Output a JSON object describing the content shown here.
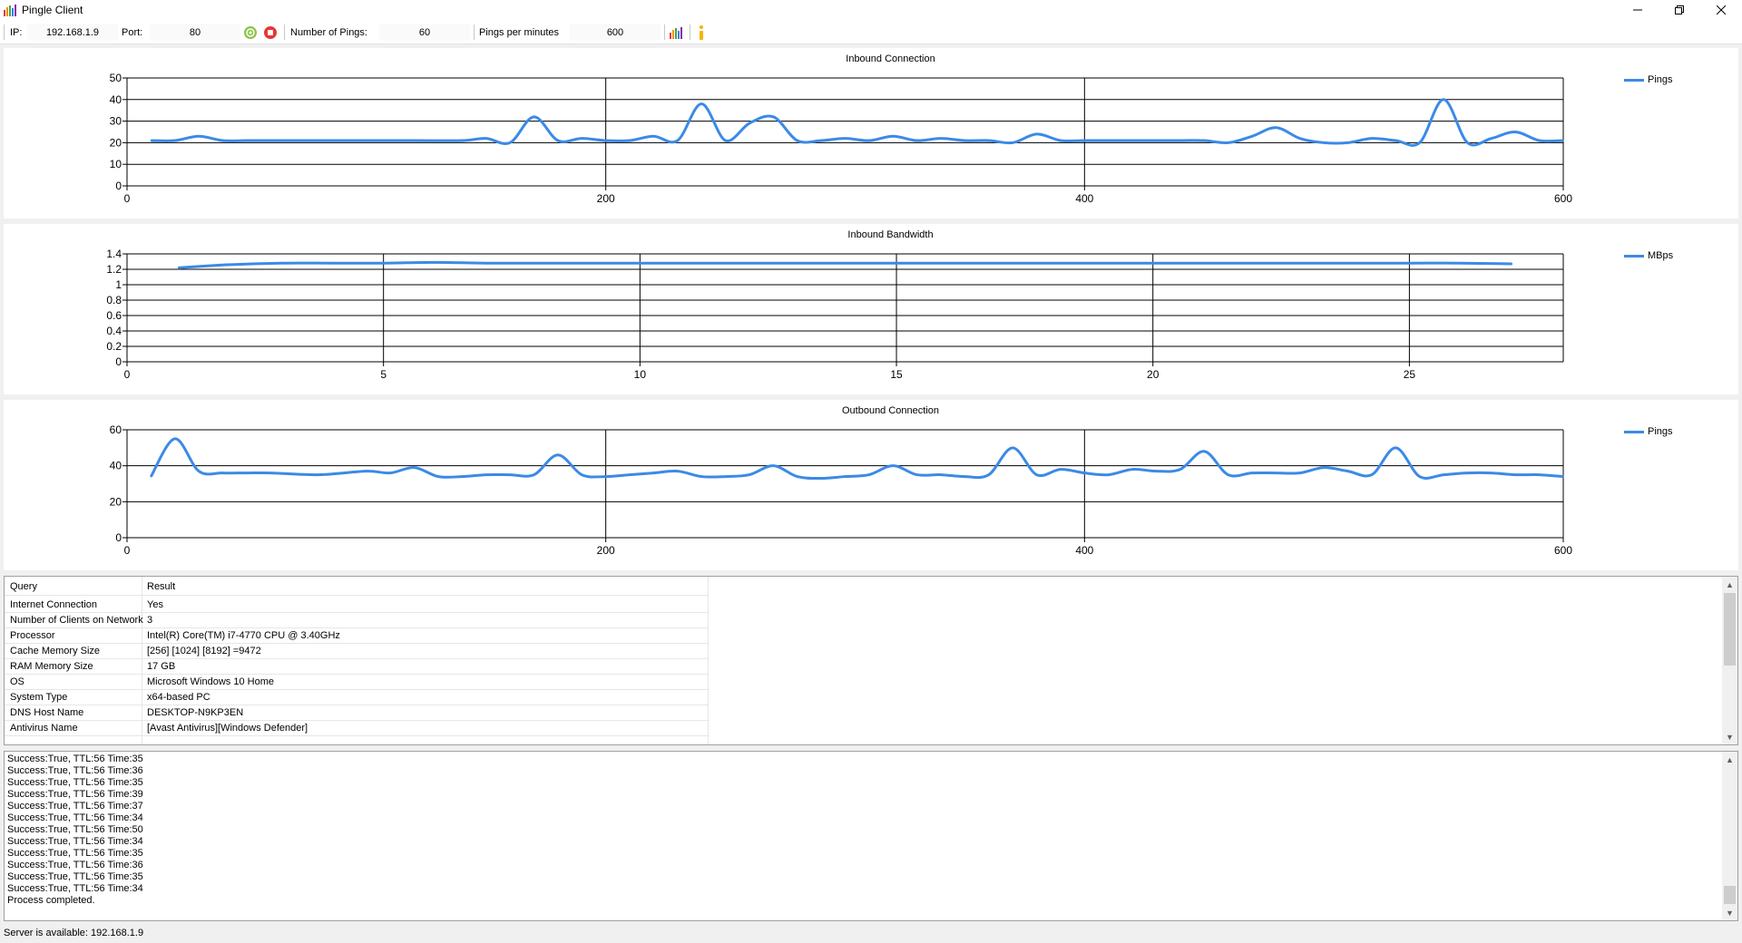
{
  "window": {
    "title": "Pingle Client"
  },
  "toolbar": {
    "ip_label": "IP:",
    "ip_value": "192.168.1.9",
    "port_label": "Port:",
    "port_value": "80",
    "pings_label": "Number of Pings:",
    "pings_value": "60",
    "ppm_label": "Pings per minutes",
    "ppm_value": "600",
    "icons": [
      "start-icon",
      "stop-icon",
      "chart-icon",
      "info-icon"
    ]
  },
  "colors": {
    "series": "#3b8ae6",
    "start": "#8bc34a",
    "stop": "#e53935"
  },
  "chart_data": [
    {
      "type": "line",
      "title": "Inbound Connection",
      "xlabel": "",
      "ylabel": "",
      "xlim": [
        0,
        600
      ],
      "ylim": [
        0,
        50
      ],
      "xticks": [
        0,
        200,
        400,
        600
      ],
      "yticks": [
        0,
        10,
        20,
        30,
        40,
        50
      ],
      "grid": true,
      "legend": "top-right",
      "series": [
        {
          "name": "Pings",
          "color": "#3b8ae6",
          "x": [
            10,
            20,
            30,
            40,
            50,
            60,
            80,
            100,
            120,
            140,
            150,
            160,
            170,
            180,
            190,
            200,
            210,
            220,
            230,
            240,
            250,
            260,
            270,
            280,
            290,
            300,
            310,
            320,
            330,
            340,
            350,
            360,
            370,
            380,
            390,
            400,
            410,
            420,
            430,
            440,
            450,
            460,
            470,
            480,
            490,
            500,
            510,
            520,
            530,
            540,
            550,
            560,
            570,
            580,
            590,
            600
          ],
          "y": [
            21,
            21,
            23,
            21,
            21,
            21,
            21,
            21,
            21,
            21,
            22,
            20,
            32,
            21,
            22,
            21,
            21,
            23,
            21,
            38,
            21,
            29,
            32,
            21,
            21,
            22,
            21,
            23,
            21,
            22,
            21,
            21,
            20,
            24,
            21,
            21,
            21,
            21,
            21,
            21,
            21,
            20,
            23,
            27,
            22,
            20,
            20,
            22,
            21,
            20,
            40,
            20,
            22,
            25,
            21,
            21
          ]
        }
      ]
    },
    {
      "type": "line",
      "title": "Inbound Bandwidth",
      "xlabel": "",
      "ylabel": "",
      "xlim": [
        0,
        28
      ],
      "ylim": [
        0,
        1.4
      ],
      "xticks": [
        0,
        5,
        10,
        15,
        20,
        25
      ],
      "yticks": [
        0,
        0.2,
        0.4,
        0.6,
        0.8,
        1,
        1.2,
        1.4
      ],
      "grid": true,
      "legend": "top-right",
      "series": [
        {
          "name": "MBps",
          "color": "#3b8ae6",
          "x": [
            1,
            2,
            3,
            4,
            5,
            6,
            7,
            8,
            9,
            10,
            11,
            12,
            13,
            14,
            15,
            16,
            17,
            18,
            19,
            20,
            21,
            22,
            23,
            24,
            25,
            26,
            27
          ],
          "y": [
            1.22,
            1.26,
            1.28,
            1.28,
            1.28,
            1.29,
            1.28,
            1.28,
            1.28,
            1.28,
            1.28,
            1.28,
            1.28,
            1.28,
            1.28,
            1.28,
            1.28,
            1.28,
            1.28,
            1.28,
            1.28,
            1.28,
            1.28,
            1.28,
            1.28,
            1.28,
            1.27
          ]
        }
      ]
    },
    {
      "type": "line",
      "title": "Outbound Connection",
      "xlabel": "",
      "ylabel": "",
      "xlim": [
        0,
        600
      ],
      "ylim": [
        0,
        60
      ],
      "xticks": [
        0,
        200,
        400,
        600
      ],
      "yticks": [
        0,
        20,
        40,
        60
      ],
      "grid": true,
      "legend": "top-right",
      "series": [
        {
          "name": "Pings",
          "color": "#3b8ae6",
          "x": [
            10,
            20,
            30,
            40,
            50,
            60,
            80,
            100,
            110,
            120,
            130,
            140,
            150,
            160,
            170,
            180,
            190,
            200,
            210,
            220,
            230,
            240,
            250,
            260,
            270,
            280,
            290,
            300,
            310,
            320,
            330,
            340,
            350,
            360,
            370,
            380,
            390,
            400,
            410,
            420,
            430,
            440,
            450,
            460,
            470,
            480,
            490,
            500,
            510,
            520,
            530,
            540,
            550,
            560,
            570,
            580,
            590,
            600
          ],
          "y": [
            34,
            55,
            37,
            36,
            36,
            36,
            35,
            37,
            36,
            39,
            34,
            34,
            35,
            35,
            35,
            46,
            35,
            34,
            35,
            36,
            37,
            34,
            34,
            35,
            40,
            34,
            33,
            34,
            35,
            40,
            35,
            35,
            34,
            35,
            50,
            35,
            38,
            36,
            35,
            38,
            37,
            38,
            48,
            35,
            36,
            36,
            36,
            39,
            37,
            35,
            50,
            34,
            35,
            36,
            36,
            35,
            35,
            34
          ]
        }
      ]
    }
  ],
  "info_table": {
    "headers": {
      "query": "Query",
      "result": "Result"
    },
    "rows": [
      {
        "query": "Internet Connection",
        "result": "Yes"
      },
      {
        "query": "Number of Clients on Network",
        "result": "3"
      },
      {
        "query": "Processor",
        "result": "Intel(R) Core(TM) i7-4770 CPU @ 3.40GHz"
      },
      {
        "query": "Cache Memory Size",
        "result": "[256] [1024] [8192] =9472"
      },
      {
        "query": "RAM Memory Size",
        "result": "17 GB"
      },
      {
        "query": "OS",
        "result": "Microsoft Windows 10 Home"
      },
      {
        "query": "System Type",
        "result": "x64-based PC"
      },
      {
        "query": "DNS Host Name",
        "result": "DESKTOP-N9KP3EN"
      },
      {
        "query": "Antivirus Name",
        "result": "[Avast Antivirus][Windows Defender]"
      }
    ]
  },
  "log": {
    "lines": [
      "Success:True, TTL:56 Time:35",
      "Success:True, TTL:56 Time:36",
      "Success:True, TTL:56 Time:35",
      "Success:True, TTL:56 Time:39",
      "Success:True, TTL:56 Time:37",
      "Success:True, TTL:56 Time:34",
      "Success:True, TTL:56 Time:50",
      "Success:True, TTL:56 Time:34",
      "Success:True, TTL:56 Time:35",
      "Success:True, TTL:56 Time:36",
      "Success:True, TTL:56 Time:35",
      "Success:True, TTL:56 Time:34",
      "Process completed."
    ]
  },
  "status": {
    "text": "Server is available: 192.168.1.9"
  }
}
